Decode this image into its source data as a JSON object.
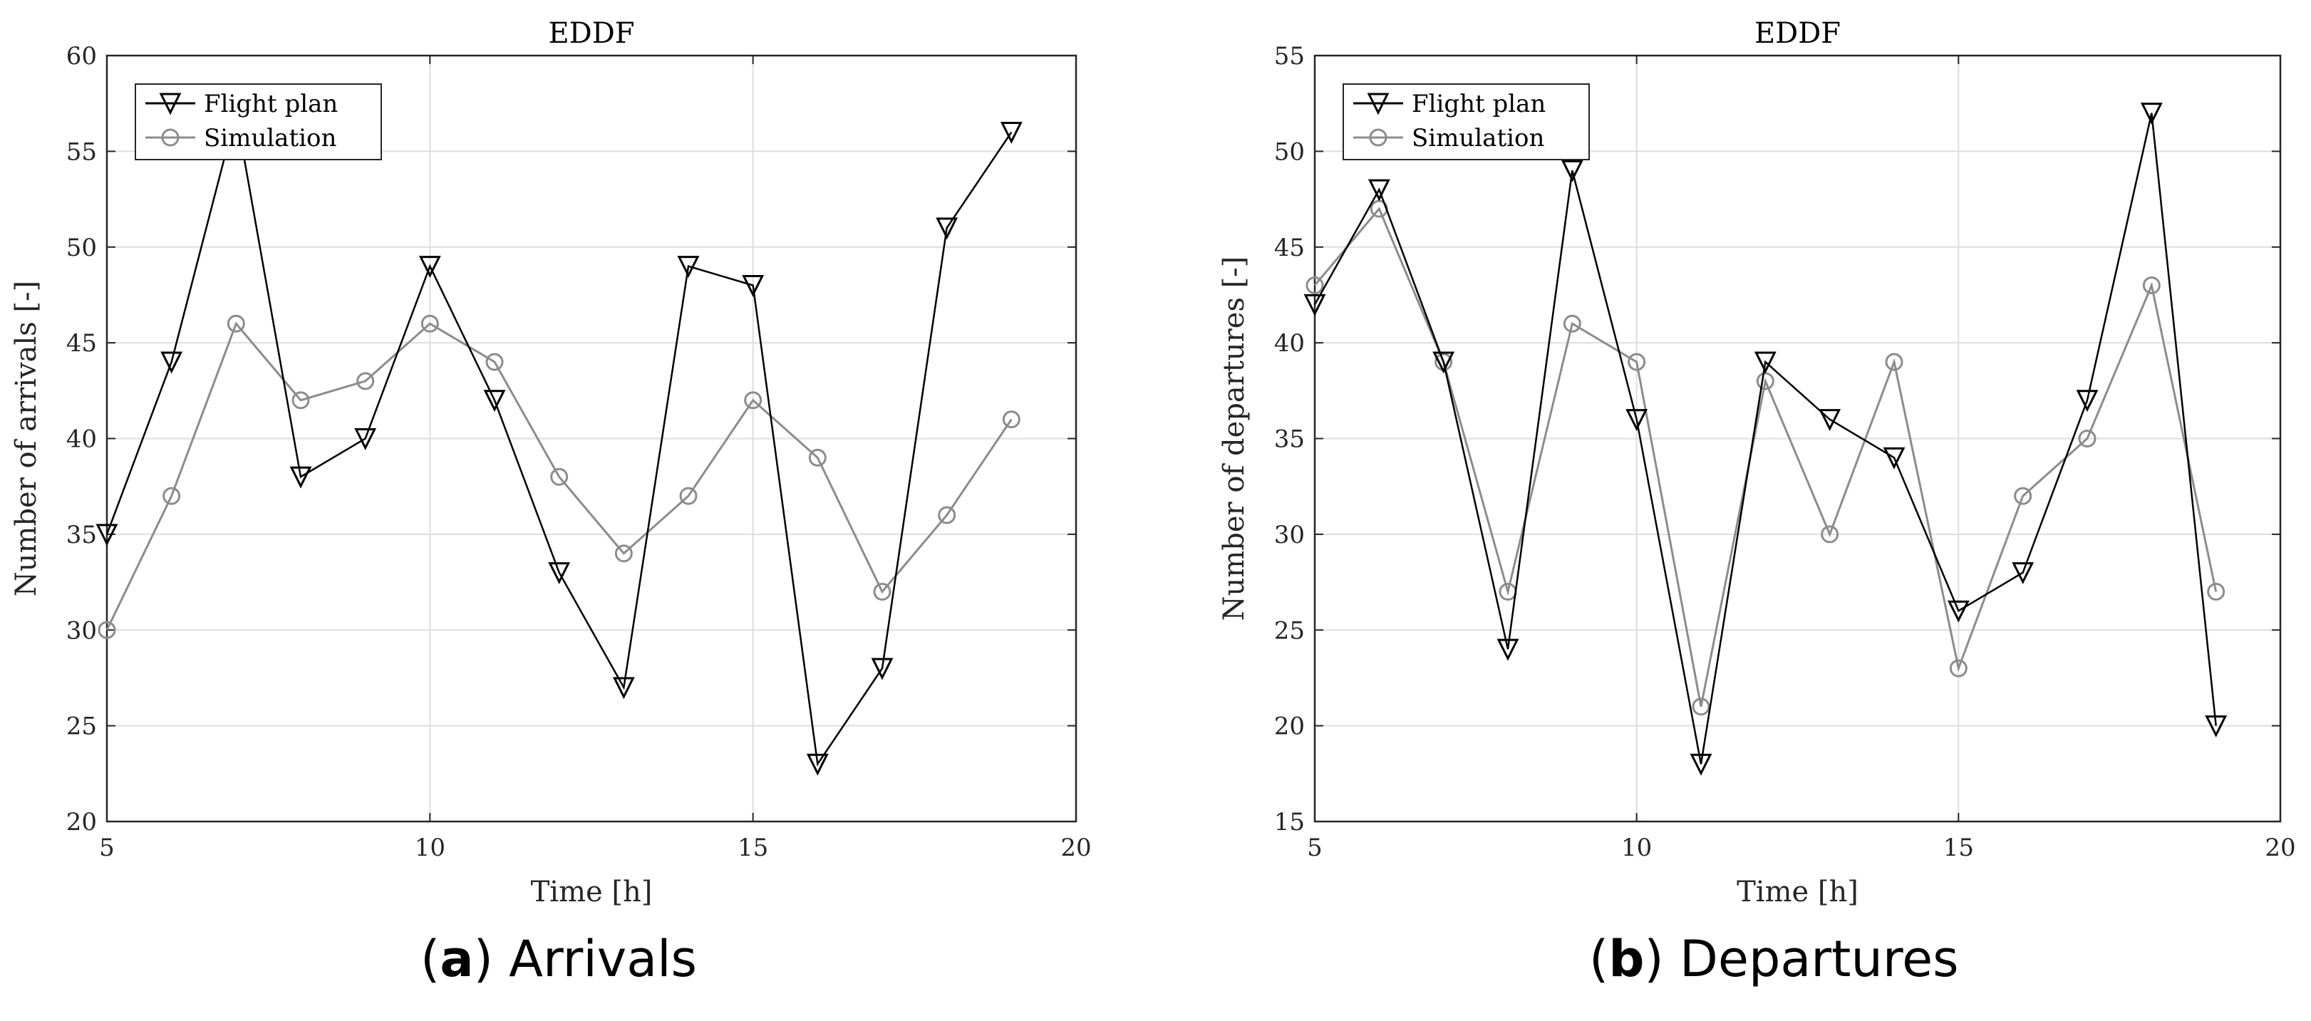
{
  "chart_data": [
    {
      "type": "line",
      "title": "EDDF",
      "xlabel": "Time [h]",
      "ylabel": "Number of arrivals [-]",
      "xlim": [
        5,
        20
      ],
      "ylim": [
        20,
        60
      ],
      "xticks": [
        5,
        10,
        15,
        20
      ],
      "yticks": [
        20,
        25,
        30,
        35,
        40,
        45,
        50,
        55,
        60
      ],
      "grid": true,
      "legend_position": "top-left",
      "x": [
        5,
        6,
        7,
        8,
        9,
        10,
        11,
        12,
        13,
        14,
        15,
        16,
        17,
        18,
        19
      ],
      "series": [
        {
          "name": "Flight plan",
          "marker": "triangle-down",
          "color": "#000000",
          "values": [
            35,
            44,
            57,
            38,
            40,
            49,
            42,
            33,
            27,
            49,
            48,
            23,
            28,
            51,
            56
          ]
        },
        {
          "name": "Simulation",
          "marker": "circle",
          "color": "#8c8c8c",
          "values": [
            30,
            37,
            46,
            42,
            43,
            46,
            44,
            38,
            34,
            37,
            42,
            39,
            32,
            36,
            41
          ]
        }
      ],
      "caption_letter": "a",
      "caption_text": "Arrivals"
    },
    {
      "type": "line",
      "title": "EDDF",
      "xlabel": "Time [h]",
      "ylabel": "Number of departures [-]",
      "xlim": [
        5,
        20
      ],
      "ylim": [
        15,
        55
      ],
      "xticks": [
        5,
        10,
        15,
        20
      ],
      "yticks": [
        15,
        20,
        25,
        30,
        35,
        40,
        45,
        50,
        55
      ],
      "grid": true,
      "legend_position": "top-left",
      "x": [
        5,
        6,
        7,
        8,
        9,
        10,
        11,
        12,
        13,
        14,
        15,
        16,
        17,
        18,
        19
      ],
      "series": [
        {
          "name": "Flight plan",
          "marker": "triangle-down",
          "color": "#000000",
          "values": [
            42,
            48,
            39,
            24,
            49,
            36,
            18,
            39,
            36,
            34,
            26,
            28,
            37,
            52,
            20
          ]
        },
        {
          "name": "Simulation",
          "marker": "circle",
          "color": "#8c8c8c",
          "values": [
            43,
            47,
            39,
            27,
            41,
            39,
            21,
            38,
            30,
            39,
            23,
            32,
            35,
            43,
            27
          ]
        }
      ],
      "caption_letter": "b",
      "caption_text": "Departures"
    }
  ]
}
